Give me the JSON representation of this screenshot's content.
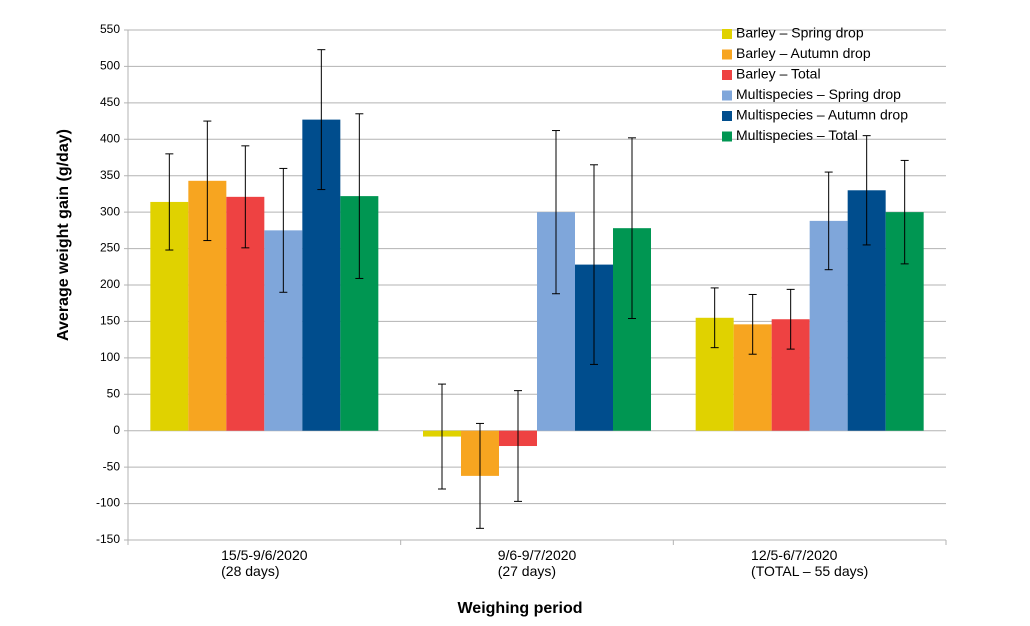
{
  "chart_data": {
    "type": "bar",
    "categories": [
      "15/5-9/6/2020\n(28 days)",
      "9/6-9/7/2020\n(27 days)",
      "12/5-6/7/2020\n(TOTAL – 55 days)"
    ],
    "series": [
      {
        "name": "Barley – Spring drop",
        "color": "#e0d200",
        "values": [
          314,
          -8,
          155
        ],
        "errors": [
          66,
          72,
          41
        ]
      },
      {
        "name": "Barley – Autumn drop",
        "color": "#f7a520",
        "values": [
          343,
          -62,
          146
        ],
        "errors": [
          82,
          72,
          41
        ]
      },
      {
        "name": "Barley – Total",
        "color": "#ee4242",
        "values": [
          321,
          -21,
          153
        ],
        "errors": [
          70,
          76,
          41
        ]
      },
      {
        "name": "Multispecies – Spring drop",
        "color": "#7fa6da",
        "values": [
          275,
          300,
          288
        ],
        "errors": [
          85,
          112,
          67
        ]
      },
      {
        "name": "Multispecies – Autumn drop",
        "color": "#004d8d",
        "values": [
          427,
          228,
          330
        ],
        "errors": [
          96,
          137,
          75
        ]
      },
      {
        "name": "Multispecies – Total",
        "color": "#009652",
        "values": [
          322,
          278,
          300
        ],
        "errors": [
          113,
          124,
          71
        ]
      }
    ],
    "ylabel": "Average weight gain (g/day)",
    "xlabel": "Weighing period",
    "ylim": [
      -150,
      550
    ],
    "yticks": [
      -150,
      -100,
      -50,
      0,
      50,
      100,
      150,
      200,
      250,
      300,
      350,
      400,
      450,
      500,
      550
    ],
    "grid": true,
    "legend": "top-right"
  }
}
